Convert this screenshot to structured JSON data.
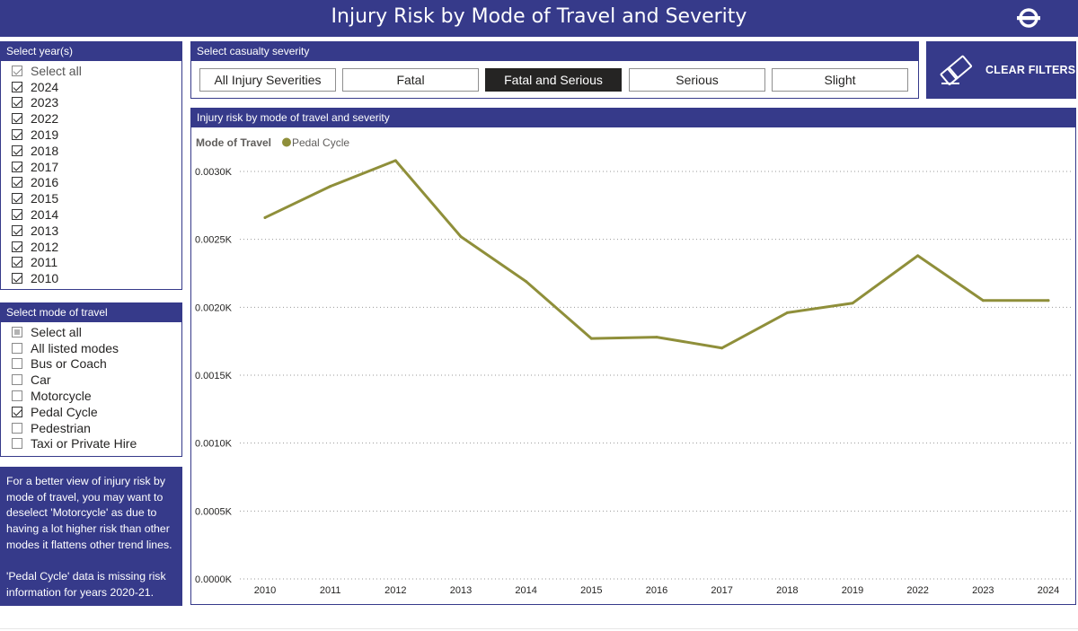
{
  "header": {
    "title": "Injury Risk by Mode of Travel and Severity",
    "logo_icon": "tfl-roundel-icon",
    "brand_color": "#363a8a"
  },
  "year_slicer": {
    "title": "Select year(s)",
    "items": [
      {
        "label": "Select all",
        "state": "checked-grey"
      },
      {
        "label": "2024",
        "state": "checked"
      },
      {
        "label": "2023",
        "state": "checked"
      },
      {
        "label": "2022",
        "state": "checked"
      },
      {
        "label": "2019",
        "state": "checked"
      },
      {
        "label": "2018",
        "state": "checked"
      },
      {
        "label": "2017",
        "state": "checked"
      },
      {
        "label": "2016",
        "state": "checked"
      },
      {
        "label": "2015",
        "state": "checked"
      },
      {
        "label": "2014",
        "state": "checked"
      },
      {
        "label": "2013",
        "state": "checked"
      },
      {
        "label": "2012",
        "state": "checked"
      },
      {
        "label": "2011",
        "state": "checked"
      },
      {
        "label": "2010",
        "state": "checked"
      }
    ]
  },
  "mode_slicer": {
    "title": "Select mode of travel",
    "items": [
      {
        "label": "Select all",
        "state": "partial"
      },
      {
        "label": "All listed modes",
        "state": "unchecked"
      },
      {
        "label": "Bus or Coach",
        "state": "unchecked"
      },
      {
        "label": "Car",
        "state": "unchecked"
      },
      {
        "label": "Motorcycle",
        "state": "unchecked"
      },
      {
        "label": "Pedal Cycle",
        "state": "checked"
      },
      {
        "label": "Pedestrian",
        "state": "unchecked"
      },
      {
        "label": "Taxi or Private Hire",
        "state": "unchecked"
      }
    ]
  },
  "note": {
    "paragraph1": "For a better view of injury risk by mode of travel, you may want to deselect 'Motorcycle' as due to having a lot higher risk than other modes it flattens other trend lines.",
    "paragraph2": "'Pedal Cycle' data is missing risk information for years 2020-21."
  },
  "severity": {
    "title": "Select casualty severity",
    "buttons": [
      {
        "label": "All Injury Severities",
        "active": false
      },
      {
        "label": "Fatal",
        "active": false
      },
      {
        "label": "Fatal and Serious",
        "active": true
      },
      {
        "label": "Serious",
        "active": false
      },
      {
        "label": "Slight",
        "active": false
      }
    ]
  },
  "clear_filters": {
    "label": "CLEAR FILTERS",
    "icon": "eraser-icon"
  },
  "chart_panel": {
    "title": "Injury risk by mode of travel and severity"
  },
  "chart_data": {
    "type": "line",
    "title": "Injury risk by mode of travel and severity",
    "legend_title": "Mode of Travel",
    "legend_position": "top-left",
    "categories": [
      "2010",
      "2011",
      "2012",
      "2013",
      "2014",
      "2015",
      "2016",
      "2017",
      "2018",
      "2019",
      "2022",
      "2023",
      "2024"
    ],
    "series": [
      {
        "name": "Pedal Cycle",
        "color": "#8f8f3a",
        "values": [
          0.00266,
          0.00289,
          0.00308,
          0.00252,
          0.00219,
          0.00177,
          0.00178,
          0.0017,
          0.00196,
          0.00203,
          0.00238,
          0.00205,
          0.00205
        ]
      }
    ],
    "y_ticks": [
      0,
      0.0005,
      0.001,
      0.0015,
      0.002,
      0.0025,
      0.003
    ],
    "y_tick_labels": [
      "0.0000K",
      "0.0005K",
      "0.0010K",
      "0.0015K",
      "0.0020K",
      "0.0025K",
      "0.0030K"
    ],
    "ylim": [
      0,
      0.003
    ],
    "xlabel": "",
    "ylabel": "",
    "grid": true
  }
}
